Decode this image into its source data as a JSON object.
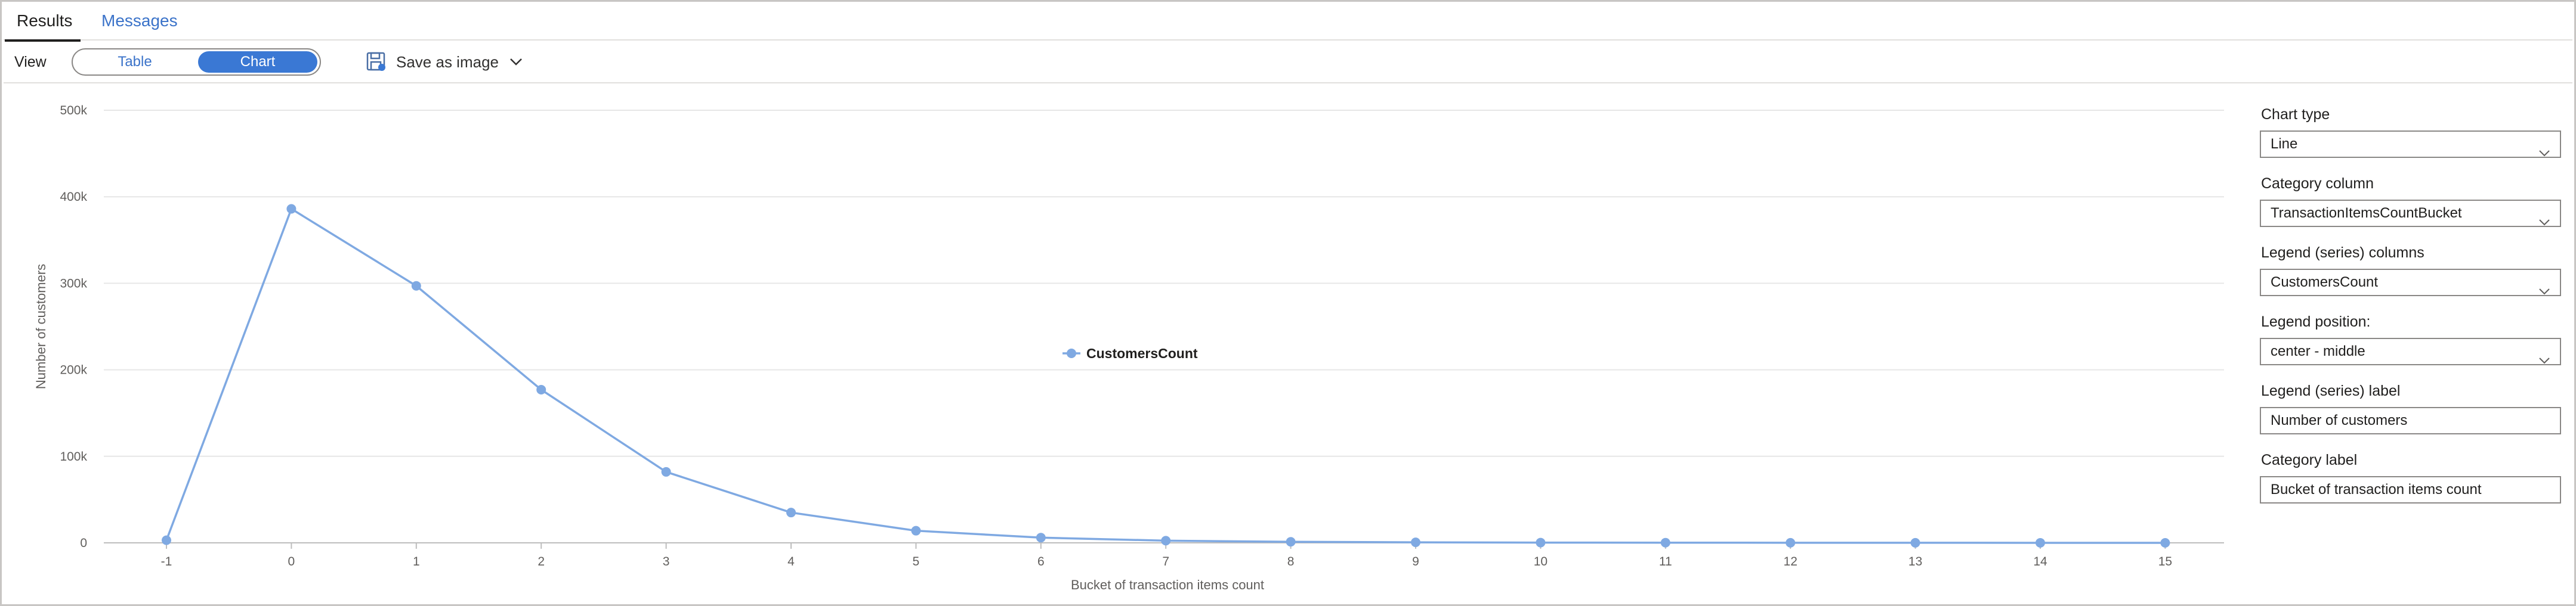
{
  "tabs": [
    {
      "label": "Results"
    },
    {
      "label": "Messages"
    }
  ],
  "toolbar": {
    "view_label": "View",
    "view_options": [
      "Table",
      "Chart"
    ],
    "selected_view": "Chart",
    "save_label": "Save as image"
  },
  "panel": {
    "chart_type": {
      "label": "Chart type",
      "value": "Line"
    },
    "category_column": {
      "label": "Category column",
      "value": "TransactionItemsCountBucket"
    },
    "legend_columns": {
      "label": "Legend (series) columns",
      "value": "CustomersCount"
    },
    "legend_position": {
      "label": "Legend position:",
      "value": "center - middle"
    },
    "legend_label": {
      "label": "Legend (series) label",
      "value": "Number of customers"
    },
    "category_label": {
      "label": "Category label",
      "value": "Bucket of transaction items count"
    }
  },
  "colors": {
    "accent": "#3a78d4",
    "link": "#3b73c9",
    "series": "#7fa9e2"
  },
  "chart_data": {
    "type": "line",
    "categories": [
      "-1",
      "0",
      "1",
      "2",
      "3",
      "4",
      "5",
      "6",
      "7",
      "8",
      "9",
      "10",
      "11",
      "12",
      "13",
      "14",
      "15"
    ],
    "series": [
      {
        "name": "CustomersCount",
        "values": [
          3000,
          386000,
          297000,
          177000,
          82000,
          35000,
          14000,
          6000,
          2500,
          1200,
          600,
          300,
          200,
          100,
          60,
          40,
          20
        ]
      }
    ],
    "xlabel": "Bucket of transaction items count",
    "ylabel": "Number of customers",
    "ylim": [
      0,
      500000
    ],
    "yticks": [
      {
        "value": 0,
        "label": "0"
      },
      {
        "value": 100000,
        "label": "100k"
      },
      {
        "value": 200000,
        "label": "200k"
      },
      {
        "value": 300000,
        "label": "300k"
      },
      {
        "value": 400000,
        "label": "400k"
      },
      {
        "value": 500000,
        "label": "500k"
      }
    ],
    "grid": true,
    "legend_position": "center - middle"
  }
}
